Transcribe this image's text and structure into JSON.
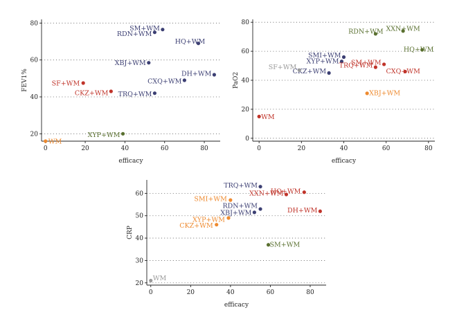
{
  "colors": {
    "navy": "#3c3f73",
    "red": "#c0342a",
    "orange": "#ee8a2f",
    "olive": "#5a7030",
    "gray": "#9a9a9a"
  },
  "chart_data": [
    {
      "type": "scatter",
      "xlabel": "efficacy",
      "ylabel": "FEV1%",
      "xlim": [
        -2,
        88
      ],
      "ylim": [
        16,
        82
      ],
      "xticks": [
        0,
        20,
        40,
        60,
        80
      ],
      "yticks": [
        20,
        40,
        60,
        80
      ],
      "grid": "horizontal-dotted",
      "points": [
        {
          "label": "SM+WM",
          "x": 59,
          "y": 76.5,
          "color": "navy",
          "anchor": "end"
        },
        {
          "label": "RDN+WM",
          "x": 55,
          "y": 75,
          "color": "navy",
          "anchor": "end"
        },
        {
          "label": "HQ+WM",
          "x": 77,
          "y": 69,
          "color": "navy",
          "anchor": "middle"
        },
        {
          "label": "XBJ+WM",
          "x": 52,
          "y": 58.5,
          "color": "navy",
          "anchor": "end"
        },
        {
          "label": "DH+WM",
          "x": 85,
          "y": 52,
          "color": "navy",
          "anchor": "end"
        },
        {
          "label": "CXQ+WM",
          "x": 70,
          "y": 49,
          "color": "navy",
          "anchor": "end"
        },
        {
          "label": "TRQ+WM",
          "x": 55,
          "y": 42,
          "color": "navy",
          "anchor": "end"
        },
        {
          "label": "SF+WM",
          "x": 19,
          "y": 47.5,
          "color": "red",
          "anchor": "end"
        },
        {
          "label": "CKZ+WM",
          "x": 33,
          "y": 43,
          "color": "red",
          "anchor": "end"
        },
        {
          "label": "XYP+WM",
          "x": 39,
          "y": 20,
          "color": "olive",
          "anchor": "end"
        },
        {
          "label": "WM",
          "x": 0,
          "y": 16,
          "color": "orange",
          "anchor": "start"
        }
      ]
    },
    {
      "type": "scatter",
      "xlabel": "efficacy",
      "ylabel": "PaO2",
      "xlim": [
        -3,
        83
      ],
      "ylim": [
        -2,
        82
      ],
      "xticks": [
        0,
        20,
        40,
        60,
        80
      ],
      "yticks": [
        0,
        20,
        40,
        60,
        80
      ],
      "grid": "horizontal-dotted",
      "points": [
        {
          "label": "RDN+WM",
          "x": 55,
          "y": 72,
          "color": "olive",
          "anchor": "middle"
        },
        {
          "label": "XXN+WM",
          "x": 68,
          "y": 74,
          "color": "olive",
          "anchor": "middle"
        },
        {
          "label": "HQ+WM",
          "x": 77,
          "y": 61,
          "color": "olive",
          "anchor": "middle"
        },
        {
          "label": "SMI+WM",
          "x": 40,
          "y": 56,
          "color": "navy",
          "anchor": "end"
        },
        {
          "label": "XYP+WM",
          "x": 39,
          "y": 53,
          "color": "navy",
          "anchor": "end"
        },
        {
          "label": "CKZ+WM",
          "x": 33,
          "y": 45,
          "color": "navy",
          "anchor": "end"
        },
        {
          "label": "SF+WM",
          "x": 19,
          "y": 47,
          "color": "gray",
          "anchor": "end"
        },
        {
          "label": "SM+WM",
          "x": 59,
          "y": 51,
          "color": "red",
          "anchor": "end"
        },
        {
          "label": "TRQ+WM",
          "x": 55,
          "y": 49,
          "color": "red",
          "anchor": "end"
        },
        {
          "label": "CXQ+WM",
          "x": 69,
          "y": 46,
          "color": "red",
          "anchor": "middle"
        },
        {
          "label": "XBJ+WM",
          "x": 51,
          "y": 31,
          "color": "orange",
          "anchor": "start"
        },
        {
          "label": "WM",
          "x": 0,
          "y": 15,
          "color": "red",
          "anchor": "start"
        }
      ]
    },
    {
      "type": "scatter",
      "xlabel": "efficacy",
      "ylabel": "CRP",
      "xlim": [
        -2,
        88
      ],
      "ylim": [
        19,
        66
      ],
      "xticks": [
        0,
        20,
        40,
        60,
        80
      ],
      "yticks": [
        20,
        30,
        40,
        50,
        60
      ],
      "grid": "horizontal-dotted",
      "points": [
        {
          "label": "TRQ+WM",
          "x": 55,
          "y": 63,
          "color": "navy",
          "anchor": "end"
        },
        {
          "label": "HQ+WM",
          "x": 77,
          "y": 60.5,
          "color": "red",
          "anchor": "end"
        },
        {
          "label": "XXN+WM",
          "x": 68,
          "y": 59.5,
          "color": "red",
          "anchor": "end"
        },
        {
          "label": "SMI+WM",
          "x": 40,
          "y": 57,
          "color": "orange",
          "anchor": "end"
        },
        {
          "label": "RDN+WM",
          "x": 55,
          "y": 53,
          "color": "navy",
          "anchor": "end"
        },
        {
          "label": "XBJ+WM",
          "x": 52,
          "y": 51.5,
          "color": "navy",
          "anchor": "end"
        },
        {
          "label": "DH+WM",
          "x": 85,
          "y": 52,
          "color": "red",
          "anchor": "end"
        },
        {
          "label": "XYP+WM",
          "x": 39,
          "y": 49,
          "color": "orange",
          "anchor": "end"
        },
        {
          "label": "CKZ+WM",
          "x": 33,
          "y": 46,
          "color": "orange",
          "anchor": "end"
        },
        {
          "label": "SM+WM",
          "x": 59,
          "y": 37,
          "color": "olive",
          "anchor": "start"
        },
        {
          "label": "WM",
          "x": 0,
          "y": 21,
          "color": "gray",
          "anchor": "start"
        }
      ]
    }
  ]
}
